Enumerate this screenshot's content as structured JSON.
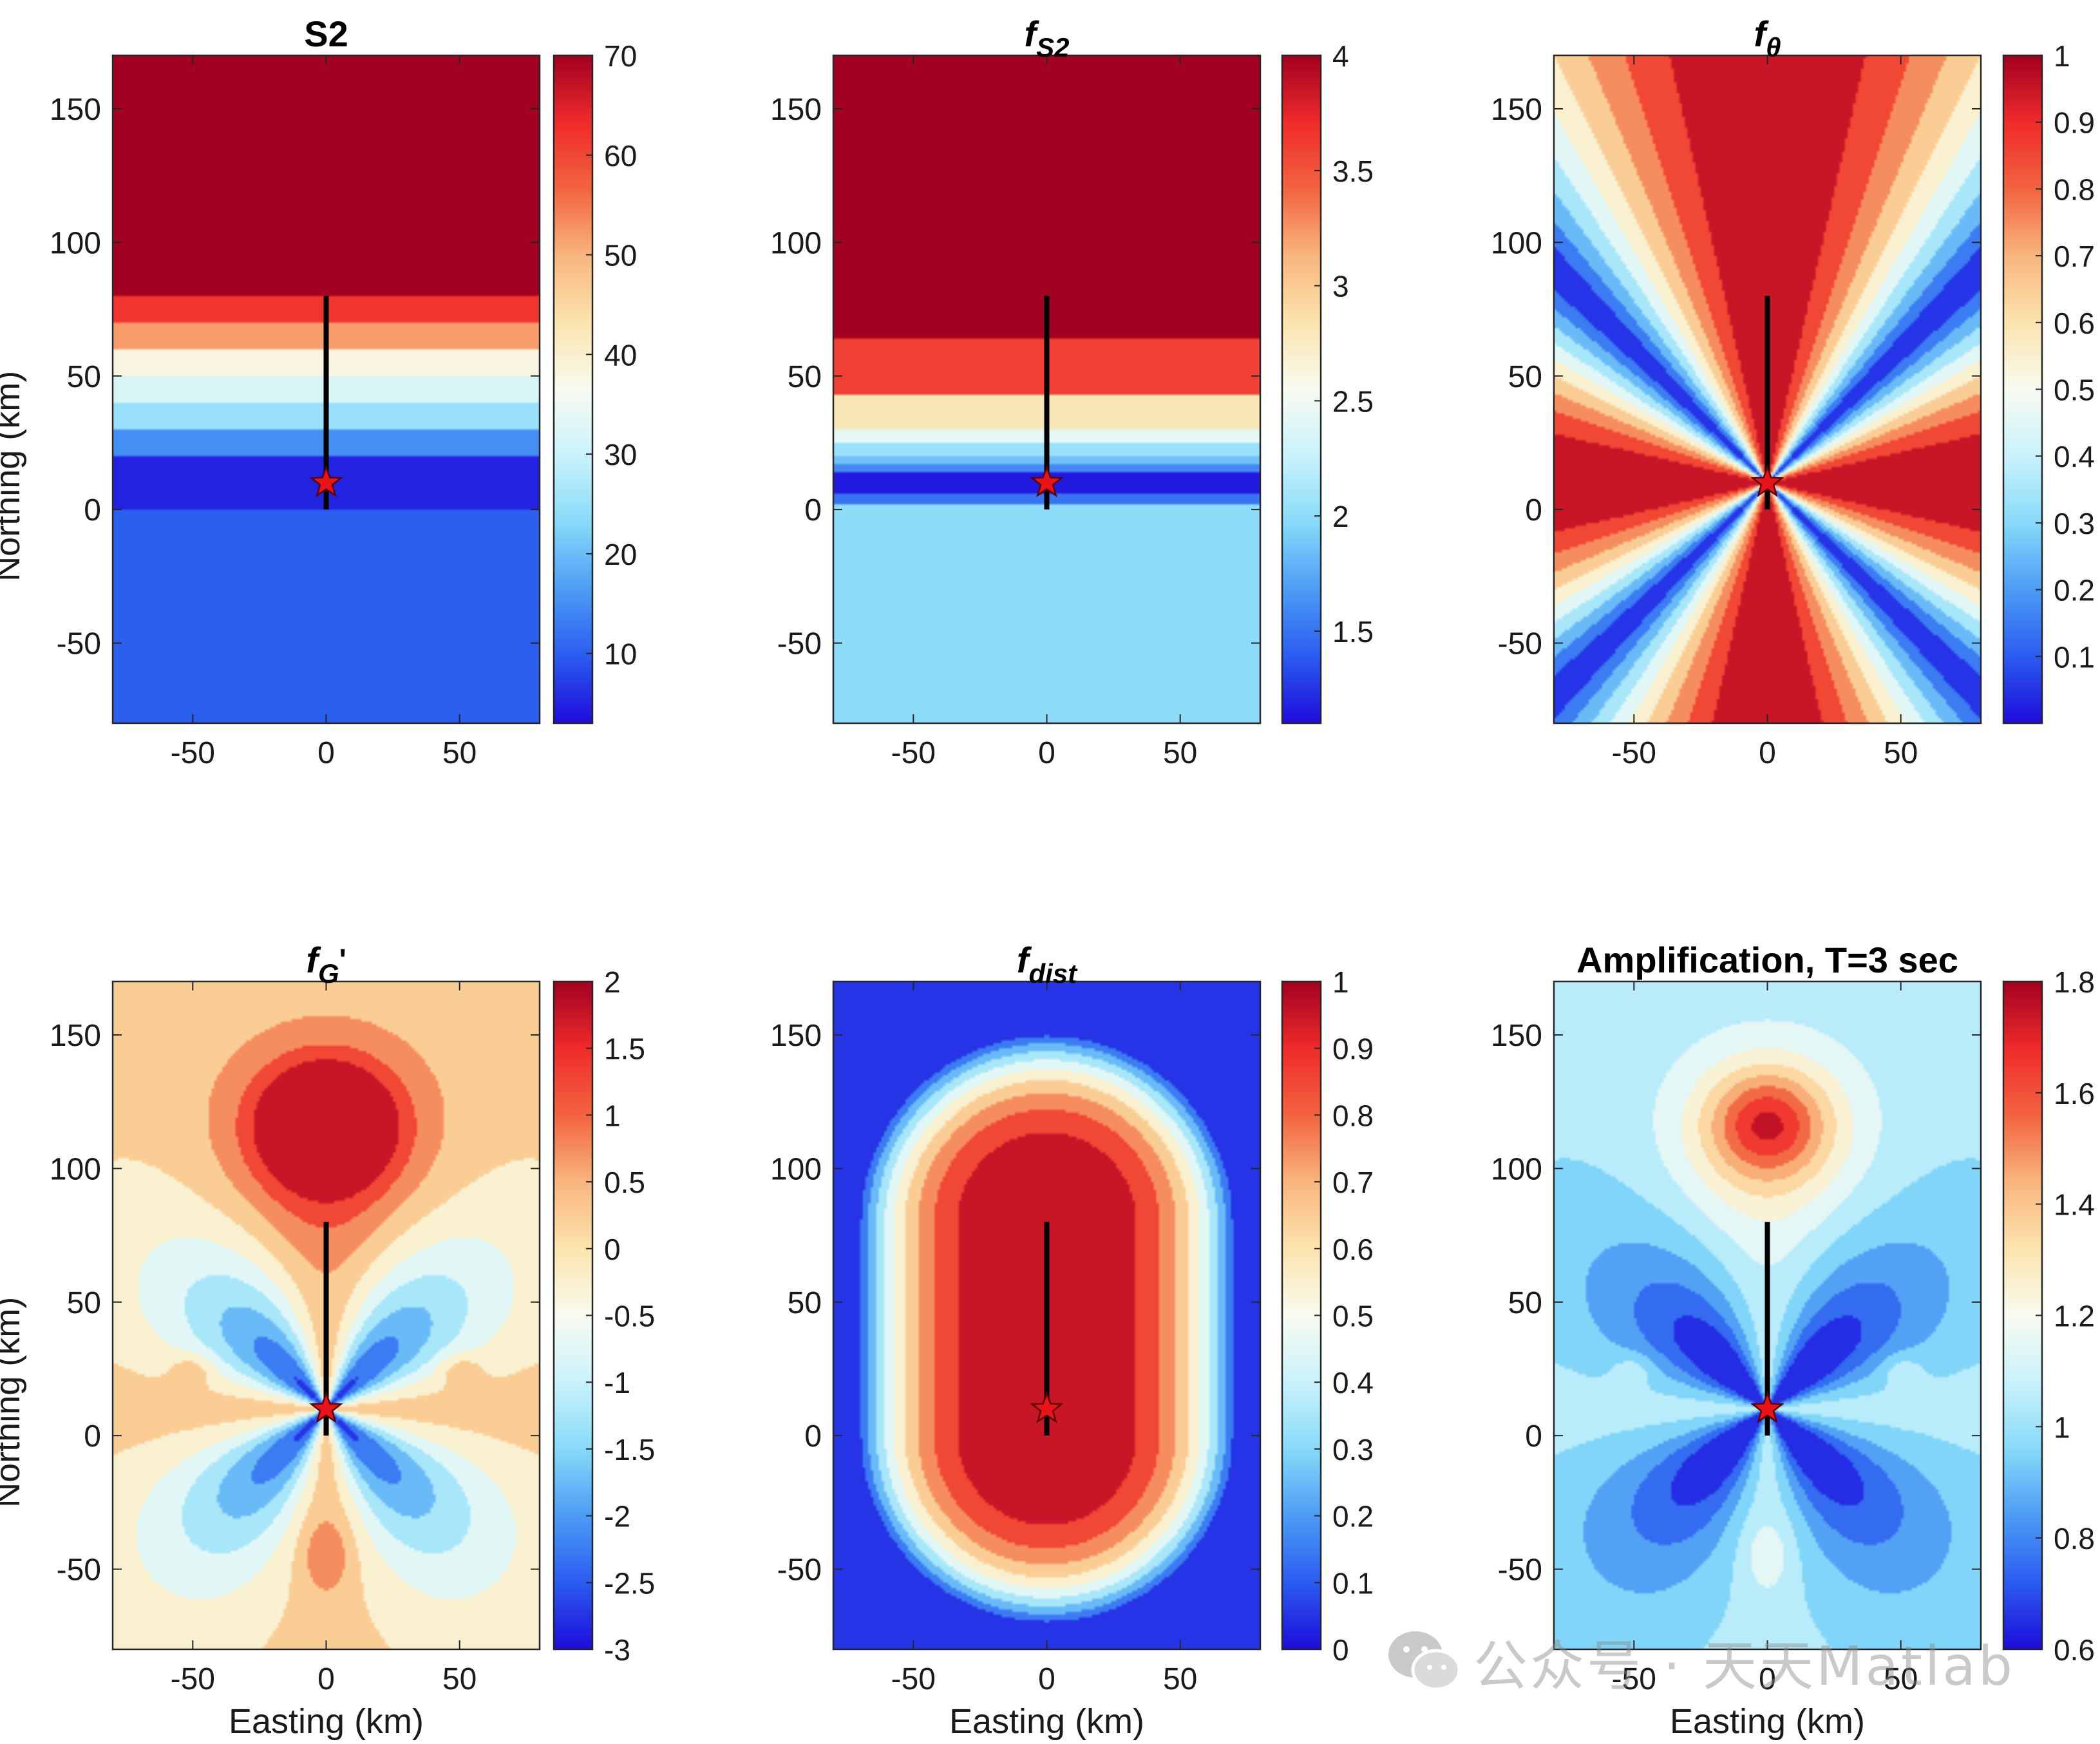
{
  "figure": {
    "watermark_text": "公众号 · 天天Matlab"
  },
  "colors": {
    "fault_line": "#000000",
    "epicenter_fill": "#e8141a",
    "epicenter_stroke": "#5a0000",
    "colormap": [
      "#1f0bdb",
      "#2a5cf0",
      "#4c9cf5",
      "#86daf9",
      "#c9f2fb",
      "#f7fbf0",
      "#fbe4ad",
      "#f9b57d",
      "#f2643f",
      "#ef2a2b",
      "#a20121"
    ]
  },
  "chart_data": [
    {
      "id": "S2",
      "type": "heatmap",
      "title": "S2",
      "title_sub": "",
      "xlabel": "",
      "ylabel": "Northing (km)",
      "xlim": [
        -80,
        80
      ],
      "ylim": [
        -80,
        170
      ],
      "xticks": [
        "-50",
        "0",
        "50"
      ],
      "yticks": [
        "-50",
        "0",
        "50",
        "100",
        "150"
      ],
      "clim": [
        3,
        70
      ],
      "cticks": [
        "10",
        "20",
        "30",
        "40",
        "50",
        "60",
        "70"
      ],
      "field": "bands",
      "bands": [
        {
          "from": -80,
          "to": 0,
          "value": 10
        },
        {
          "from": 0,
          "to": 20,
          "value": 5
        },
        {
          "from": 20,
          "to": 30,
          "value": 15
        },
        {
          "from": 30,
          "to": 40,
          "value": 25
        },
        {
          "from": 40,
          "to": 50,
          "value": 32
        },
        {
          "from": 50,
          "to": 60,
          "value": 38
        },
        {
          "from": 60,
          "to": 70,
          "value": 52
        },
        {
          "from": 70,
          "to": 80,
          "value": 62
        },
        {
          "from": 80,
          "to": 170,
          "value": 70
        }
      ],
      "fault": {
        "x": 0,
        "y_from": 0,
        "y_to": 80
      },
      "epicenter": {
        "x": 0,
        "y": 10
      }
    },
    {
      "id": "fS2",
      "type": "heatmap",
      "title": "f",
      "title_sub": "S2",
      "xlabel": "",
      "ylabel": "",
      "xlim": [
        -80,
        80
      ],
      "ylim": [
        -80,
        170
      ],
      "xticks": [
        "-50",
        "0",
        "50"
      ],
      "yticks": [
        "-50",
        "0",
        "50",
        "100",
        "150"
      ],
      "clim": [
        1.1,
        4
      ],
      "cticks": [
        "1.5",
        "2",
        "2.5",
        "3",
        "3.5",
        "4"
      ],
      "field": "bands",
      "bands": [
        {
          "from": -80,
          "to": 2,
          "value": 2.0
        },
        {
          "from": 2,
          "to": 6,
          "value": 1.5
        },
        {
          "from": 6,
          "to": 14,
          "value": 1.15
        },
        {
          "from": 14,
          "to": 17,
          "value": 1.6
        },
        {
          "from": 17,
          "to": 20,
          "value": 1.85
        },
        {
          "from": 20,
          "to": 25,
          "value": 2.05
        },
        {
          "from": 25,
          "to": 30,
          "value": 2.45
        },
        {
          "from": 30,
          "to": 43,
          "value": 2.8
        },
        {
          "from": 43,
          "to": 64,
          "value": 3.6
        },
        {
          "from": 64,
          "to": 170,
          "value": 4.0
        }
      ],
      "fault": {
        "x": 0,
        "y_from": 0,
        "y_to": 80
      },
      "epicenter": {
        "x": 0,
        "y": 10
      }
    },
    {
      "id": "ftheta",
      "type": "heatmap",
      "title": "f",
      "title_sub": "θ",
      "xlabel": "",
      "ylabel": "",
      "xlim": [
        -80,
        80
      ],
      "ylim": [
        -80,
        170
      ],
      "xticks": [
        "-50",
        "0",
        "50"
      ],
      "yticks": [
        "-50",
        "0",
        "50",
        "100",
        "150"
      ],
      "clim": [
        0,
        1
      ],
      "cticks": [
        "0.1",
        "0.2",
        "0.3",
        "0.4",
        "0.5",
        "0.6",
        "0.7",
        "0.8",
        "0.9",
        "1"
      ],
      "field": "radiation",
      "levels": 10,
      "fault": {
        "x": 0,
        "y_from": 0,
        "y_to": 80
      },
      "epicenter": {
        "x": 0,
        "y": 10
      }
    },
    {
      "id": "fG",
      "type": "heatmap",
      "title": "f",
      "title_sub": "G",
      "title_prime": "'",
      "xlabel": "Easting (km)",
      "ylabel": "Northing (km)",
      "xlim": [
        -80,
        80
      ],
      "ylim": [
        -80,
        170
      ],
      "xticks": [
        "-50",
        "0",
        "50"
      ],
      "yticks": [
        "-50",
        "0",
        "50",
        "100",
        "150"
      ],
      "clim": [
        -3,
        2
      ],
      "cticks": [
        "-3",
        "-2.5",
        "-2",
        "-1.5",
        "-1",
        "-0.5",
        "0",
        "0.5",
        "1",
        "1.5",
        "2"
      ],
      "field": "geometric",
      "levels": 10,
      "fault": {
        "x": 0,
        "y_from": 0,
        "y_to": 80
      },
      "epicenter": {
        "x": 0,
        "y": 10
      }
    },
    {
      "id": "fdist",
      "type": "heatmap",
      "title": "f",
      "title_sub": "dist",
      "xlabel": "Easting (km)",
      "ylabel": "",
      "xlim": [
        -80,
        80
      ],
      "ylim": [
        -80,
        170
      ],
      "xticks": [
        "-50",
        "0",
        "50"
      ],
      "yticks": [
        "-50",
        "0",
        "50",
        "100",
        "150"
      ],
      "clim": [
        0,
        1
      ],
      "cticks": [
        "0",
        "0.1",
        "0.2",
        "0.3",
        "0.4",
        "0.5",
        "0.6",
        "0.7",
        "0.8",
        "0.9",
        "1"
      ],
      "field": "distance",
      "levels": 10,
      "fault": {
        "x": 0,
        "y_from": 0,
        "y_to": 80
      },
      "epicenter": {
        "x": 0,
        "y": 10
      }
    },
    {
      "id": "amp",
      "type": "heatmap",
      "title": "Amplification, T=3 sec",
      "title_sub": "",
      "xlabel": "Easting (km)",
      "ylabel": "",
      "xlim": [
        -80,
        80
      ],
      "ylim": [
        -80,
        170
      ],
      "xticks": [
        "-50",
        "0",
        "50"
      ],
      "yticks": [
        "-50",
        "0",
        "50",
        "100",
        "150"
      ],
      "clim": [
        0.6,
        1.8
      ],
      "cticks": [
        "0.6",
        "0.8",
        "1",
        "1.2",
        "1.4",
        "1.6",
        "1.8"
      ],
      "field": "amplification",
      "levels": 12,
      "fault": {
        "x": 0,
        "y_from": 0,
        "y_to": 80
      },
      "epicenter": {
        "x": 0,
        "y": 10
      }
    }
  ]
}
